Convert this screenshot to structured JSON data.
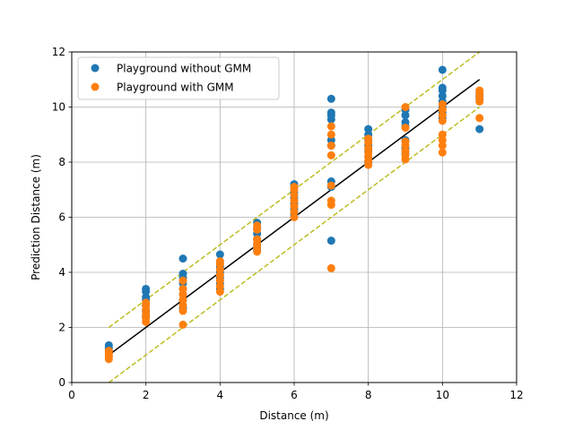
{
  "chart_data": {
    "type": "scatter",
    "title": "",
    "xlabel": "Distance (m)",
    "ylabel": "Prediction Distance (m)",
    "xlim": [
      0,
      12
    ],
    "ylim": [
      0,
      12
    ],
    "xticks": [
      0,
      2,
      4,
      6,
      8,
      10,
      12
    ],
    "yticks": [
      0,
      2,
      4,
      6,
      8,
      10,
      12
    ],
    "grid": true,
    "legend_position": "top-left",
    "series": [
      {
        "name": "Playground without GMM",
        "color": "#1f77b4",
        "marker": "circle",
        "points": [
          [
            1,
            0.95
          ],
          [
            1,
            1.05
          ],
          [
            1,
            1.15
          ],
          [
            1,
            1.25
          ],
          [
            1,
            1.35
          ],
          [
            2,
            2.4
          ],
          [
            2,
            2.6
          ],
          [
            2,
            2.8
          ],
          [
            2,
            3.0
          ],
          [
            2,
            3.1
          ],
          [
            2,
            3.3
          ],
          [
            2,
            3.4
          ],
          [
            3,
            2.7
          ],
          [
            3,
            3.0
          ],
          [
            3,
            3.2
          ],
          [
            3,
            3.4
          ],
          [
            3,
            3.6
          ],
          [
            3,
            3.8
          ],
          [
            3,
            3.95
          ],
          [
            3,
            4.5
          ],
          [
            4,
            3.4
          ],
          [
            4,
            3.6
          ],
          [
            4,
            3.8
          ],
          [
            4,
            4.0
          ],
          [
            4,
            4.2
          ],
          [
            4,
            4.4
          ],
          [
            4,
            4.65
          ],
          [
            5,
            4.8
          ],
          [
            5,
            5.0
          ],
          [
            5,
            5.2
          ],
          [
            5,
            5.4
          ],
          [
            5,
            5.6
          ],
          [
            5,
            5.8
          ],
          [
            6,
            6.1
          ],
          [
            6,
            6.3
          ],
          [
            6,
            6.5
          ],
          [
            6,
            6.7
          ],
          [
            6,
            6.9
          ],
          [
            6,
            7.1
          ],
          [
            6,
            7.2
          ],
          [
            7,
            5.15
          ],
          [
            7,
            7.1
          ],
          [
            7,
            7.3
          ],
          [
            7,
            8.6
          ],
          [
            7,
            8.8
          ],
          [
            7,
            9.55
          ],
          [
            7,
            9.7
          ],
          [
            7,
            9.8
          ],
          [
            7,
            10.3
          ],
          [
            8,
            8.0
          ],
          [
            8,
            8.2
          ],
          [
            8,
            8.4
          ],
          [
            8,
            8.6
          ],
          [
            8,
            8.8
          ],
          [
            8,
            9.0
          ],
          [
            8,
            9.2
          ],
          [
            9,
            8.3
          ],
          [
            9,
            8.5
          ],
          [
            9,
            8.8
          ],
          [
            9,
            9.3
          ],
          [
            9,
            9.45
          ],
          [
            9,
            9.7
          ],
          [
            9,
            9.9
          ],
          [
            10,
            9.6
          ],
          [
            10,
            9.8
          ],
          [
            10,
            10.0
          ],
          [
            10,
            10.2
          ],
          [
            10,
            10.4
          ],
          [
            10,
            10.6
          ],
          [
            10,
            10.7
          ],
          [
            10,
            11.35
          ],
          [
            11,
            9.2
          ],
          [
            11,
            10.3
          ],
          [
            11,
            10.4
          ],
          [
            11,
            10.5
          ]
        ]
      },
      {
        "name": "Playground with GMM",
        "color": "#ff7f0e",
        "marker": "circle",
        "points": [
          [
            1,
            0.85
          ],
          [
            1,
            0.95
          ],
          [
            1,
            1.05
          ],
          [
            1,
            1.15
          ],
          [
            2,
            2.2
          ],
          [
            2,
            2.35
          ],
          [
            2,
            2.5
          ],
          [
            2,
            2.65
          ],
          [
            2,
            2.8
          ],
          [
            2,
            2.9
          ],
          [
            3,
            2.1
          ],
          [
            3,
            2.6
          ],
          [
            3,
            2.8
          ],
          [
            3,
            3.0
          ],
          [
            3,
            3.2
          ],
          [
            3,
            3.4
          ],
          [
            3,
            3.7
          ],
          [
            4,
            3.3
          ],
          [
            4,
            3.5
          ],
          [
            4,
            3.7
          ],
          [
            4,
            3.9
          ],
          [
            4,
            4.1
          ],
          [
            4,
            4.3
          ],
          [
            4,
            4.4
          ],
          [
            5,
            4.75
          ],
          [
            5,
            4.9
          ],
          [
            5,
            5.05
          ],
          [
            5,
            5.2
          ],
          [
            5,
            5.55
          ],
          [
            5,
            5.7
          ],
          [
            6,
            6.0
          ],
          [
            6,
            6.2
          ],
          [
            6,
            6.4
          ],
          [
            6,
            6.6
          ],
          [
            6,
            6.8
          ],
          [
            6,
            7.0
          ],
          [
            6,
            7.1
          ],
          [
            7,
            4.15
          ],
          [
            7,
            6.45
          ],
          [
            7,
            6.6
          ],
          [
            7,
            7.15
          ],
          [
            7,
            8.25
          ],
          [
            7,
            8.6
          ],
          [
            7,
            9.0
          ],
          [
            7,
            9.3
          ],
          [
            8,
            7.9
          ],
          [
            8,
            8.05
          ],
          [
            8,
            8.2
          ],
          [
            8,
            8.35
          ],
          [
            8,
            8.5
          ],
          [
            8,
            8.7
          ],
          [
            8,
            8.85
          ],
          [
            9,
            8.1
          ],
          [
            9,
            8.25
          ],
          [
            9,
            8.4
          ],
          [
            9,
            8.6
          ],
          [
            9,
            8.75
          ],
          [
            9,
            9.25
          ],
          [
            9,
            10.0
          ],
          [
            10,
            8.35
          ],
          [
            10,
            8.6
          ],
          [
            10,
            8.8
          ],
          [
            10,
            9.0
          ],
          [
            10,
            9.5
          ],
          [
            10,
            9.7
          ],
          [
            10,
            9.9
          ],
          [
            10,
            10.1
          ],
          [
            11,
            9.6
          ],
          [
            11,
            10.2
          ],
          [
            11,
            10.35
          ],
          [
            11,
            10.5
          ],
          [
            11,
            10.6
          ]
        ]
      }
    ],
    "lines": [
      {
        "kind": "identity",
        "color": "#000000",
        "style": "solid",
        "x": [
          1,
          11
        ],
        "y": [
          1,
          11
        ]
      },
      {
        "kind": "upper-bound",
        "color": "#bcbd22",
        "style": "dashed",
        "x": [
          1,
          11
        ],
        "y": [
          2,
          12
        ]
      },
      {
        "kind": "lower-bound",
        "color": "#bcbd22",
        "style": "dashed",
        "x": [
          1,
          11
        ],
        "y": [
          0,
          10
        ]
      }
    ]
  }
}
